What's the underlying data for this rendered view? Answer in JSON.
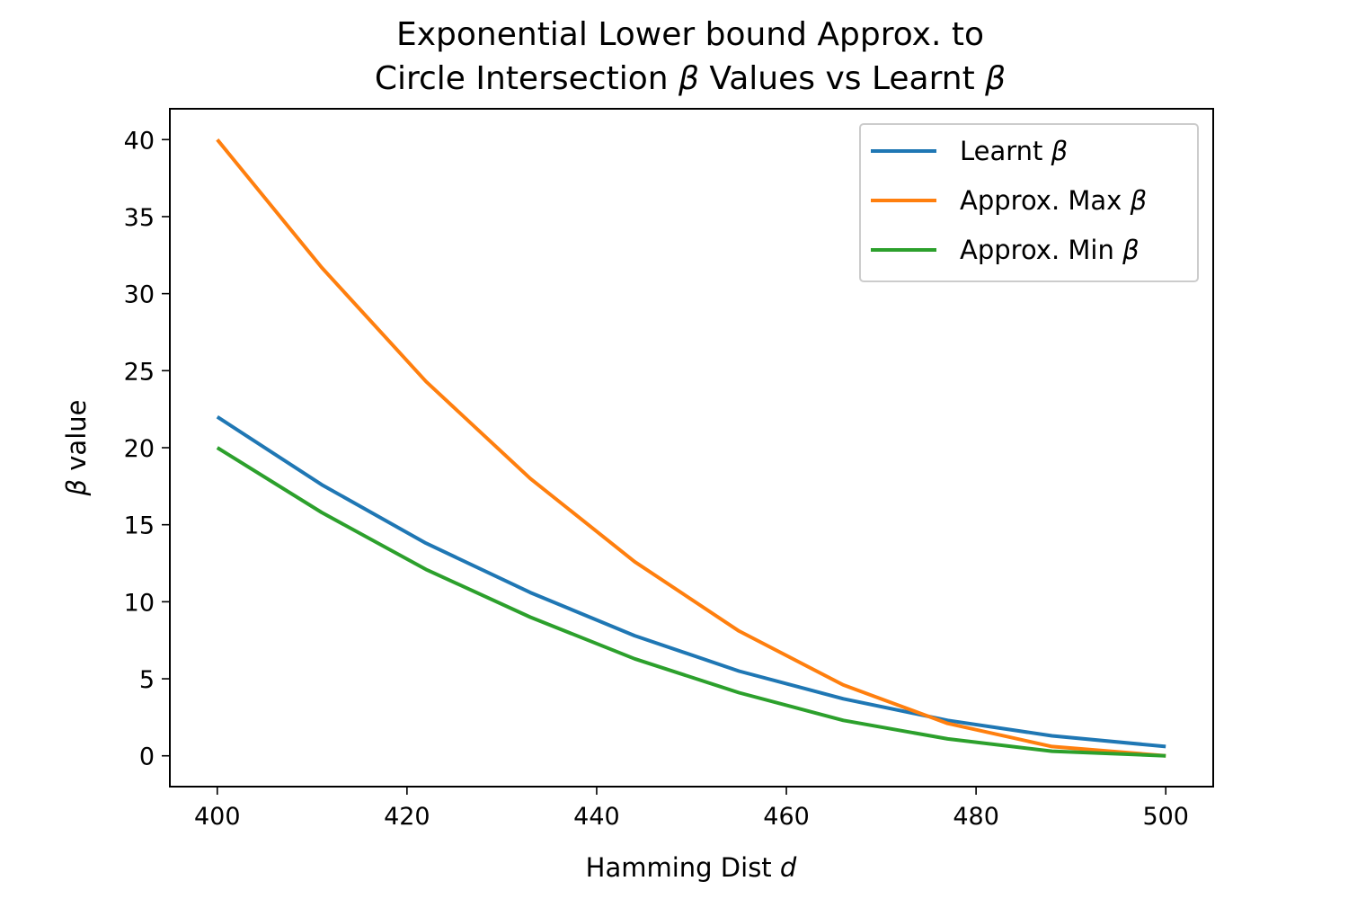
{
  "chart_data": {
    "type": "line",
    "title_lines": [
      [
        {
          "t": "Exponential Lower bound Approx. to"
        }
      ],
      [
        {
          "t": "Circle Intersection "
        },
        {
          "t": "β",
          "i": true
        },
        {
          "t": " Values vs Learnt "
        },
        {
          "t": "β",
          "i": true
        }
      ]
    ],
    "xlabel": [
      {
        "t": "Hamming Dist "
      },
      {
        "t": "d",
        "i": true
      }
    ],
    "ylabel": [
      {
        "t": "β",
        "i": true
      },
      {
        "t": " value"
      }
    ],
    "xlim": [
      395,
      505
    ],
    "ylim": [
      -2,
      42
    ],
    "xticks": [
      400,
      420,
      440,
      460,
      480,
      500
    ],
    "yticks": [
      0,
      5,
      10,
      15,
      20,
      25,
      30,
      35,
      40
    ],
    "grid": false,
    "legend_position": "top-right",
    "x": [
      400,
      411,
      422,
      433,
      444,
      455,
      466,
      477,
      488,
      500
    ],
    "series": [
      {
        "name": [
          {
            "t": "Learnt "
          },
          {
            "t": "β",
            "i": true
          }
        ],
        "color": "#1f77b4",
        "values": [
          22.0,
          17.6,
          13.8,
          10.6,
          7.8,
          5.5,
          3.7,
          2.3,
          1.3,
          0.6
        ]
      },
      {
        "name": [
          {
            "t": "Approx. Max "
          },
          {
            "t": "β",
            "i": true
          }
        ],
        "color": "#ff7f0e",
        "values": [
          40.0,
          31.7,
          24.3,
          18.0,
          12.6,
          8.1,
          4.6,
          2.1,
          0.6,
          0.0
        ]
      },
      {
        "name": [
          {
            "t": "Approx. Min "
          },
          {
            "t": "β",
            "i": true
          }
        ],
        "color": "#2ca02c",
        "values": [
          20.0,
          15.8,
          12.1,
          9.0,
          6.3,
          4.1,
          2.3,
          1.1,
          0.3,
          0.0
        ]
      }
    ]
  }
}
